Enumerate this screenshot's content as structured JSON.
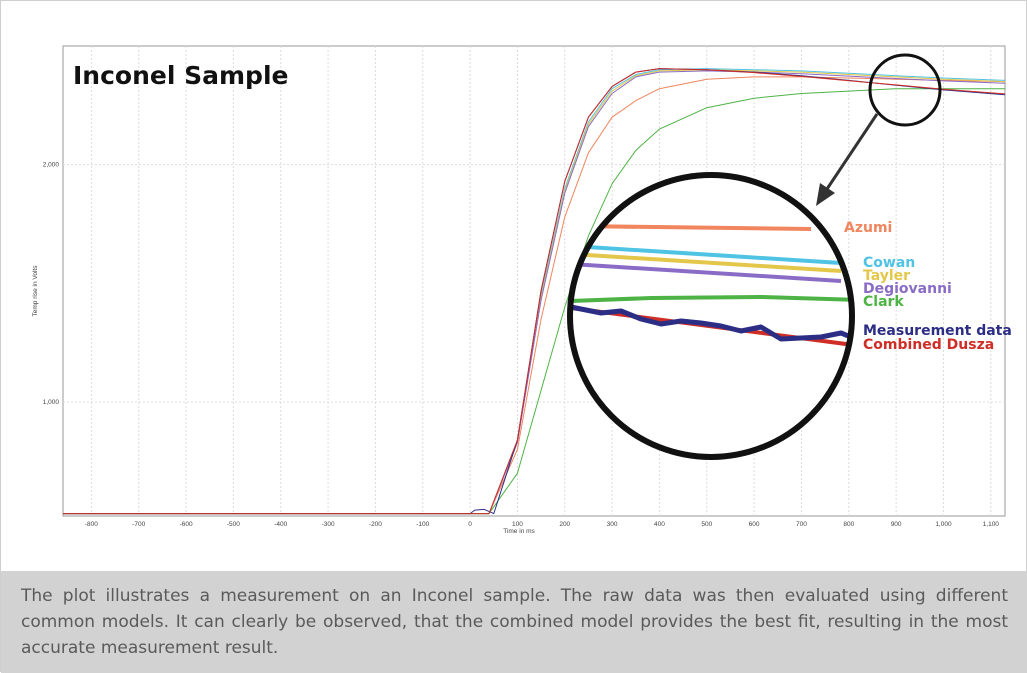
{
  "caption": "The plot illustrates a measurement on an Inconel sample. The raw data was then evaluated using different common models. It can clearly be observed, that  the combined model provides the best fit, resulting in the most accurate measurement result.",
  "chart_data": {
    "type": "line",
    "title": "Inconel Sample",
    "xlabel": "Time in ms",
    "ylabel": "Temp rise in Volts",
    "xlim": [
      -860,
      1130
    ],
    "ylim": [
      520,
      2500
    ],
    "x_ticks": [
      -800,
      -700,
      -600,
      -500,
      -400,
      -300,
      -200,
      -100,
      0,
      100,
      200,
      300,
      400,
      500,
      600,
      700,
      800,
      900,
      1000,
      1100
    ],
    "x_tick_labels": [
      "-800",
      "-700",
      "-600",
      "-500",
      "-400",
      "-300",
      "-200",
      "-100",
      "0",
      "100",
      "200",
      "300",
      "400",
      "500",
      "600",
      "700",
      "800",
      "900",
      "1,000",
      "1,100"
    ],
    "y_ticks": [
      1000,
      2000
    ],
    "y_tick_labels": [
      "1,000",
      "2,000"
    ],
    "grid": true,
    "baseline": 530,
    "series": [
      {
        "name": "Azumi",
        "color": "#f0855e",
        "values": [
          [
            -860,
            530
          ],
          [
            0,
            530
          ],
          [
            40,
            530
          ],
          [
            100,
            800
          ],
          [
            150,
            1350
          ],
          [
            200,
            1780
          ],
          [
            250,
            2050
          ],
          [
            300,
            2200
          ],
          [
            350,
            2270
          ],
          [
            400,
            2320
          ],
          [
            500,
            2360
          ],
          [
            600,
            2370
          ],
          [
            700,
            2370
          ],
          [
            800,
            2365
          ],
          [
            900,
            2360
          ],
          [
            1000,
            2355
          ],
          [
            1130,
            2350
          ]
        ]
      },
      {
        "name": "Cowan",
        "color": "#4fc3e3",
        "values": [
          [
            -860,
            530
          ],
          [
            0,
            530
          ],
          [
            40,
            530
          ],
          [
            100,
            830
          ],
          [
            150,
            1450
          ],
          [
            200,
            1900
          ],
          [
            250,
            2180
          ],
          [
            300,
            2320
          ],
          [
            350,
            2380
          ],
          [
            400,
            2400
          ],
          [
            500,
            2405
          ],
          [
            600,
            2400
          ],
          [
            700,
            2395
          ],
          [
            800,
            2385
          ],
          [
            900,
            2375
          ],
          [
            1000,
            2365
          ],
          [
            1130,
            2355
          ]
        ]
      },
      {
        "name": "Tayler",
        "color": "#e3c74a",
        "values": [
          [
            -860,
            530
          ],
          [
            0,
            530
          ],
          [
            40,
            530
          ],
          [
            100,
            830
          ],
          [
            150,
            1440
          ],
          [
            200,
            1890
          ],
          [
            250,
            2170
          ],
          [
            300,
            2310
          ],
          [
            350,
            2375
          ],
          [
            400,
            2395
          ],
          [
            500,
            2400
          ],
          [
            600,
            2395
          ],
          [
            700,
            2390
          ],
          [
            800,
            2380
          ],
          [
            900,
            2370
          ],
          [
            1000,
            2360
          ],
          [
            1130,
            2350
          ]
        ]
      },
      {
        "name": "Degiovanni",
        "color": "#8a6cc6",
        "values": [
          [
            -860,
            530
          ],
          [
            0,
            530
          ],
          [
            40,
            530
          ],
          [
            100,
            830
          ],
          [
            150,
            1430
          ],
          [
            200,
            1880
          ],
          [
            250,
            2160
          ],
          [
            300,
            2300
          ],
          [
            350,
            2370
          ],
          [
            400,
            2390
          ],
          [
            500,
            2395
          ],
          [
            600,
            2390
          ],
          [
            700,
            2383
          ],
          [
            800,
            2373
          ],
          [
            900,
            2363
          ],
          [
            1000,
            2353
          ],
          [
            1130,
            2343
          ]
        ]
      },
      {
        "name": "Clark",
        "color": "#4db345",
        "values": [
          [
            -860,
            530
          ],
          [
            0,
            530
          ],
          [
            40,
            530
          ],
          [
            100,
            700
          ],
          [
            150,
            1050
          ],
          [
            200,
            1400
          ],
          [
            250,
            1700
          ],
          [
            300,
            1920
          ],
          [
            350,
            2060
          ],
          [
            400,
            2150
          ],
          [
            500,
            2240
          ],
          [
            600,
            2280
          ],
          [
            700,
            2300
          ],
          [
            800,
            2310
          ],
          [
            900,
            2320
          ],
          [
            1000,
            2320
          ],
          [
            1130,
            2320
          ]
        ]
      },
      {
        "name": "Measurement data",
        "color": "#2c2e86",
        "values": [
          [
            -860,
            530
          ],
          [
            -200,
            530
          ],
          [
            0,
            530
          ],
          [
            10,
            545
          ],
          [
            30,
            548
          ],
          [
            50,
            530
          ],
          [
            100,
            840
          ],
          [
            150,
            1470
          ],
          [
            200,
            1930
          ],
          [
            250,
            2200
          ],
          [
            300,
            2330
          ],
          [
            350,
            2390
          ],
          [
            400,
            2405
          ],
          [
            500,
            2400
          ],
          [
            600,
            2390
          ],
          [
            700,
            2375
          ],
          [
            800,
            2355
          ],
          [
            900,
            2335
          ],
          [
            1000,
            2315
          ],
          [
            1130,
            2295
          ]
        ]
      },
      {
        "name": "Combined Dusza",
        "color": "#cf2e27",
        "values": [
          [
            -860,
            530
          ],
          [
            0,
            530
          ],
          [
            40,
            530
          ],
          [
            100,
            840
          ],
          [
            150,
            1470
          ],
          [
            200,
            1930
          ],
          [
            250,
            2200
          ],
          [
            300,
            2330
          ],
          [
            350,
            2390
          ],
          [
            400,
            2405
          ],
          [
            500,
            2400
          ],
          [
            600,
            2388
          ],
          [
            700,
            2372
          ],
          [
            800,
            2354
          ],
          [
            900,
            2336
          ],
          [
            1000,
            2318
          ],
          [
            1130,
            2298
          ]
        ]
      }
    ],
    "zoom_inset": {
      "labels": [
        {
          "text": "Azumi",
          "color": "#f0855e"
        },
        {
          "text": "Cowan",
          "color": "#4fc3e3"
        },
        {
          "text": "Tayler",
          "color": "#e3c74a"
        },
        {
          "text": "Degiovanni",
          "color": "#8a6cc6"
        },
        {
          "text": "Clark",
          "color": "#4db345"
        },
        {
          "text": "Measurement data",
          "color": "#2c2e86"
        },
        {
          "text": "Combined Dusza",
          "color": "#cf2e27"
        }
      ]
    }
  }
}
